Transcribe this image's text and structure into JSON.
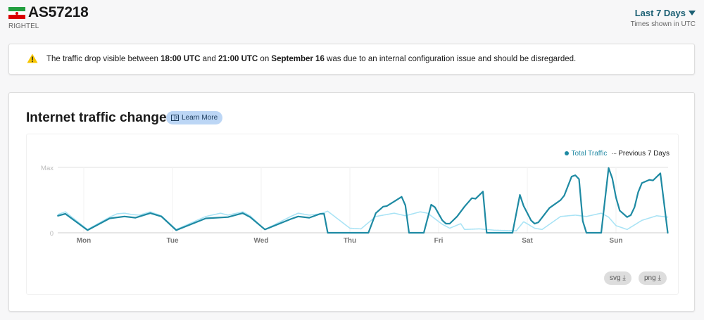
{
  "header": {
    "flag_colors": [
      "#239f40",
      "#ffffff",
      "#da0000"
    ],
    "asn": "AS57218",
    "org": "RIGHTEL",
    "range_label": "Last 7 Days",
    "timezone_note": "Times shown in UTC"
  },
  "notice": {
    "icon": "warning-icon",
    "parts": [
      {
        "t": "The traffic drop visible between ",
        "b": false
      },
      {
        "t": "18:00 UTC",
        "b": true
      },
      {
        "t": " and ",
        "b": false
      },
      {
        "t": "21:00 UTC",
        "b": true
      },
      {
        "t": " on ",
        "b": false
      },
      {
        "t": "September 16",
        "b": true
      },
      {
        "t": " was due to an internal configuration issue and should be disregarded.",
        "b": false
      }
    ]
  },
  "card": {
    "title": "Internet traffic change",
    "learn_more": "Learn More",
    "download_svg": "svg",
    "download_png": "png"
  },
  "chart_data": {
    "type": "line",
    "y_ticks": [
      "Max",
      "0"
    ],
    "ylim": [
      0,
      100
    ],
    "x_ticks": [
      {
        "label": "Mon",
        "at": "09-14 00:00"
      },
      {
        "label": "Tue",
        "at": "09-15 00:00"
      },
      {
        "label": "Wed",
        "at": "09-16 00:00"
      },
      {
        "label": "Thu",
        "at": "09-17 00:00"
      },
      {
        "label": "Fri",
        "at": "09-18 00:00"
      },
      {
        "label": "Sat",
        "at": "09-19 00:00"
      },
      {
        "label": "Sun",
        "at": "09-20 00:00"
      }
    ],
    "grid": true,
    "legend": "top-right",
    "series": [
      {
        "name": "Total Traffic",
        "color": "#1e8aa3",
        "style": "solid",
        "points": [
          [
            "09-13 17:00",
            26
          ],
          [
            "09-13 19:00",
            29
          ],
          [
            "09-14 01:00",
            4
          ],
          [
            "09-14 07:00",
            22
          ],
          [
            "09-14 11:00",
            25
          ],
          [
            "09-14 14:00",
            23
          ],
          [
            "09-14 18:00",
            30
          ],
          [
            "09-14 21:00",
            25
          ],
          [
            "09-15 01:00",
            4
          ],
          [
            "09-15 09:00",
            22
          ],
          [
            "09-15 15:00",
            24
          ],
          [
            "09-15 19:00",
            30
          ],
          [
            "09-15 21:00",
            24
          ],
          [
            "09-16 01:00",
            5
          ],
          [
            "09-16 08:00",
            21
          ],
          [
            "09-16 10:00",
            25
          ],
          [
            "09-16 13:00",
            23
          ],
          [
            "09-16 16:00",
            29
          ],
          [
            "09-16 17:00",
            29
          ],
          [
            "09-16 18:00",
            0
          ],
          [
            "09-17 05:00",
            0
          ],
          [
            "09-17 07:00",
            30
          ],
          [
            "09-17 09:00",
            40
          ],
          [
            "09-17 10:00",
            41
          ],
          [
            "09-17 12:00",
            48
          ],
          [
            "09-17 14:00",
            55
          ],
          [
            "09-17 15:00",
            42
          ],
          [
            "09-17 16:00",
            0
          ],
          [
            "09-17 20:00",
            0
          ],
          [
            "09-17 22:00",
            43
          ],
          [
            "09-17 23:00",
            39
          ],
          [
            "09-18 01:00",
            19
          ],
          [
            "09-18 02:00",
            14
          ],
          [
            "09-18 03:00",
            14
          ],
          [
            "09-18 05:00",
            25
          ],
          [
            "09-18 07:00",
            40
          ],
          [
            "09-18 09:00",
            53
          ],
          [
            "09-18 10:00",
            52
          ],
          [
            "09-18 12:00",
            63
          ],
          [
            "09-18 13:00",
            0
          ],
          [
            "09-18 20:00",
            0
          ],
          [
            "09-18 22:00",
            58
          ],
          [
            "09-18 23:00",
            41
          ],
          [
            "09-19 01:00",
            19
          ],
          [
            "09-19 02:00",
            14
          ],
          [
            "09-19 03:00",
            16
          ],
          [
            "09-19 06:00",
            38
          ],
          [
            "09-19 09:00",
            50
          ],
          [
            "09-19 10:00",
            57
          ],
          [
            "09-19 12:00",
            86
          ],
          [
            "09-19 13:00",
            88
          ],
          [
            "09-19 14:00",
            82
          ],
          [
            "09-19 15:00",
            18
          ],
          [
            "09-19 16:00",
            0
          ],
          [
            "09-19 20:00",
            0
          ],
          [
            "09-19 22:00",
            99
          ],
          [
            "09-19 23:00",
            83
          ],
          [
            "09-20 00:00",
            54
          ],
          [
            "09-20 01:00",
            34
          ],
          [
            "09-20 03:00",
            24
          ],
          [
            "09-20 04:00",
            27
          ],
          [
            "09-20 05:00",
            39
          ],
          [
            "09-20 06:00",
            62
          ],
          [
            "09-20 07:00",
            76
          ],
          [
            "09-20 09:00",
            81
          ],
          [
            "09-20 10:00",
            80
          ],
          [
            "09-20 12:00",
            91
          ],
          [
            "09-20 14:00",
            0
          ]
        ]
      },
      {
        "name": "Previous 7 Days",
        "color": "#a9e3f5",
        "style": "dotted",
        "points": [
          [
            "09-13 17:00",
            28
          ],
          [
            "09-13 19:00",
            32
          ],
          [
            "09-14 01:00",
            5
          ],
          [
            "09-14 07:00",
            24
          ],
          [
            "09-14 09:00",
            29
          ],
          [
            "09-14 11:00",
            30
          ],
          [
            "09-14 13:00",
            28
          ],
          [
            "09-14 15:00",
            27
          ],
          [
            "09-14 18:00",
            32
          ],
          [
            "09-14 21:00",
            26
          ],
          [
            "09-15 01:00",
            5
          ],
          [
            "09-15 09:00",
            25
          ],
          [
            "09-15 13:00",
            30
          ],
          [
            "09-15 15:00",
            27
          ],
          [
            "09-15 19:00",
            32
          ],
          [
            "09-15 21:00",
            26
          ],
          [
            "09-16 01:00",
            5
          ],
          [
            "09-16 08:00",
            25
          ],
          [
            "09-16 10:00",
            30
          ],
          [
            "09-16 13:00",
            27
          ],
          [
            "09-16 16:00",
            29
          ],
          [
            "09-16 18:00",
            33
          ],
          [
            "09-17 00:00",
            7
          ],
          [
            "09-17 03:00",
            6
          ],
          [
            "09-17 07:00",
            25
          ],
          [
            "09-17 12:00",
            30
          ],
          [
            "09-17 15:00",
            26
          ],
          [
            "09-17 19:00",
            32
          ],
          [
            "09-17 21:00",
            30
          ],
          [
            "09-18 01:00",
            13
          ],
          [
            "09-18 03:00",
            7
          ],
          [
            "09-18 06:00",
            14
          ],
          [
            "09-18 07:00",
            5
          ],
          [
            "09-18 11:00",
            6
          ],
          [
            "09-18 15:00",
            4
          ],
          [
            "09-18 21:00",
            3
          ],
          [
            "09-18 23:00",
            17
          ],
          [
            "09-19 02:00",
            7
          ],
          [
            "09-19 04:00",
            5
          ],
          [
            "09-19 09:00",
            25
          ],
          [
            "09-19 13:00",
            27
          ],
          [
            "09-19 16:00",
            25
          ],
          [
            "09-19 20:00",
            30
          ],
          [
            "09-19 22:00",
            24
          ],
          [
            "09-20 00:00",
            11
          ],
          [
            "09-20 03:00",
            5
          ],
          [
            "09-20 07:00",
            19
          ],
          [
            "09-20 11:00",
            26
          ],
          [
            "09-20 14:00",
            24
          ]
        ]
      }
    ]
  }
}
